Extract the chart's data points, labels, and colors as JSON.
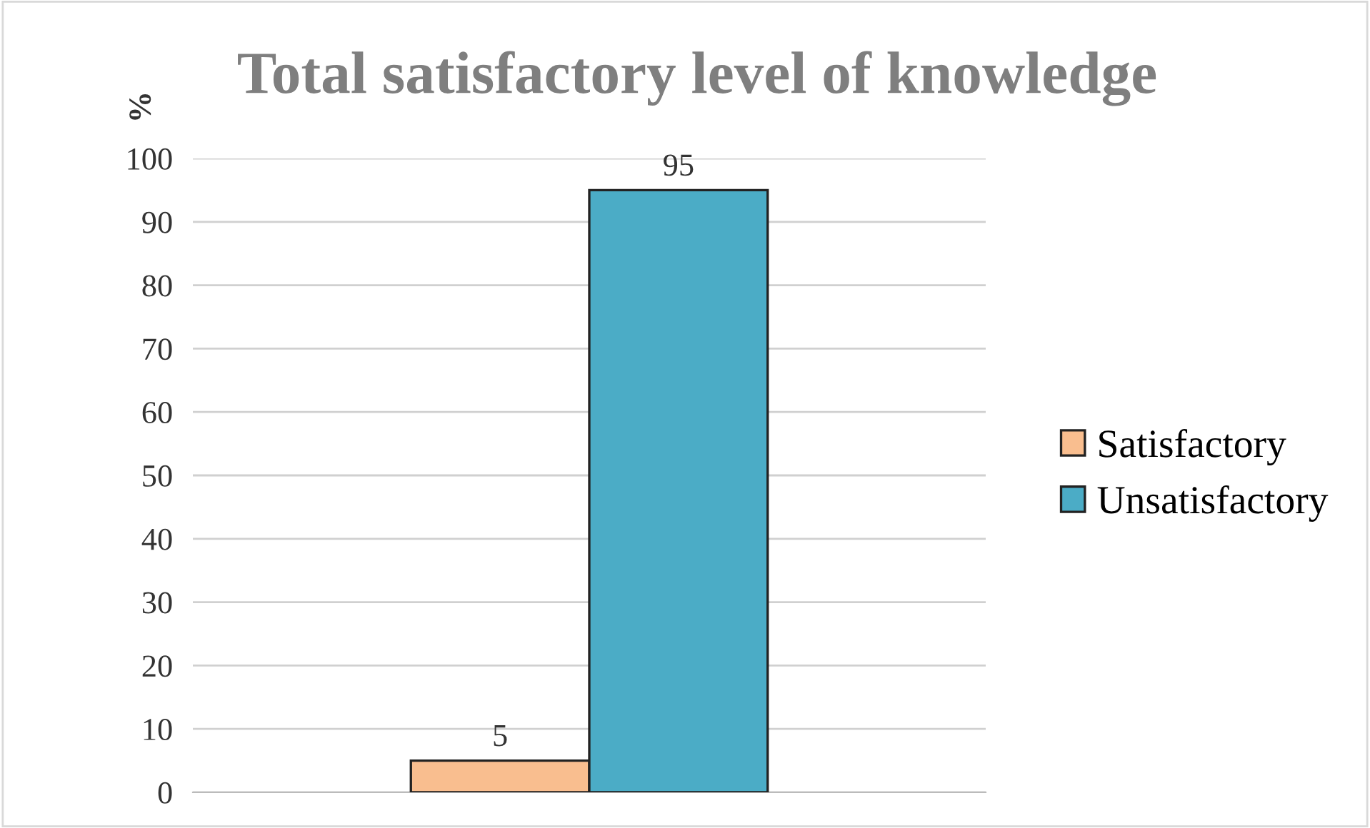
{
  "chart_data": {
    "type": "bar",
    "title": "Total satisfactory level of knowledge",
    "ylabel": "%",
    "categories": [
      null
    ],
    "series": [
      {
        "name": "Satisfactory",
        "color": "#f9be8f",
        "values": [
          5
        ]
      },
      {
        "name": "Unsatisfactory",
        "color": "#4bacc6",
        "values": [
          95
        ]
      }
    ],
    "ylim": [
      0,
      100
    ],
    "yticks": [
      0,
      10,
      20,
      30,
      40,
      50,
      60,
      70,
      80,
      90,
      100
    ],
    "grid": "y",
    "legend": "right",
    "data_labels": true
  }
}
